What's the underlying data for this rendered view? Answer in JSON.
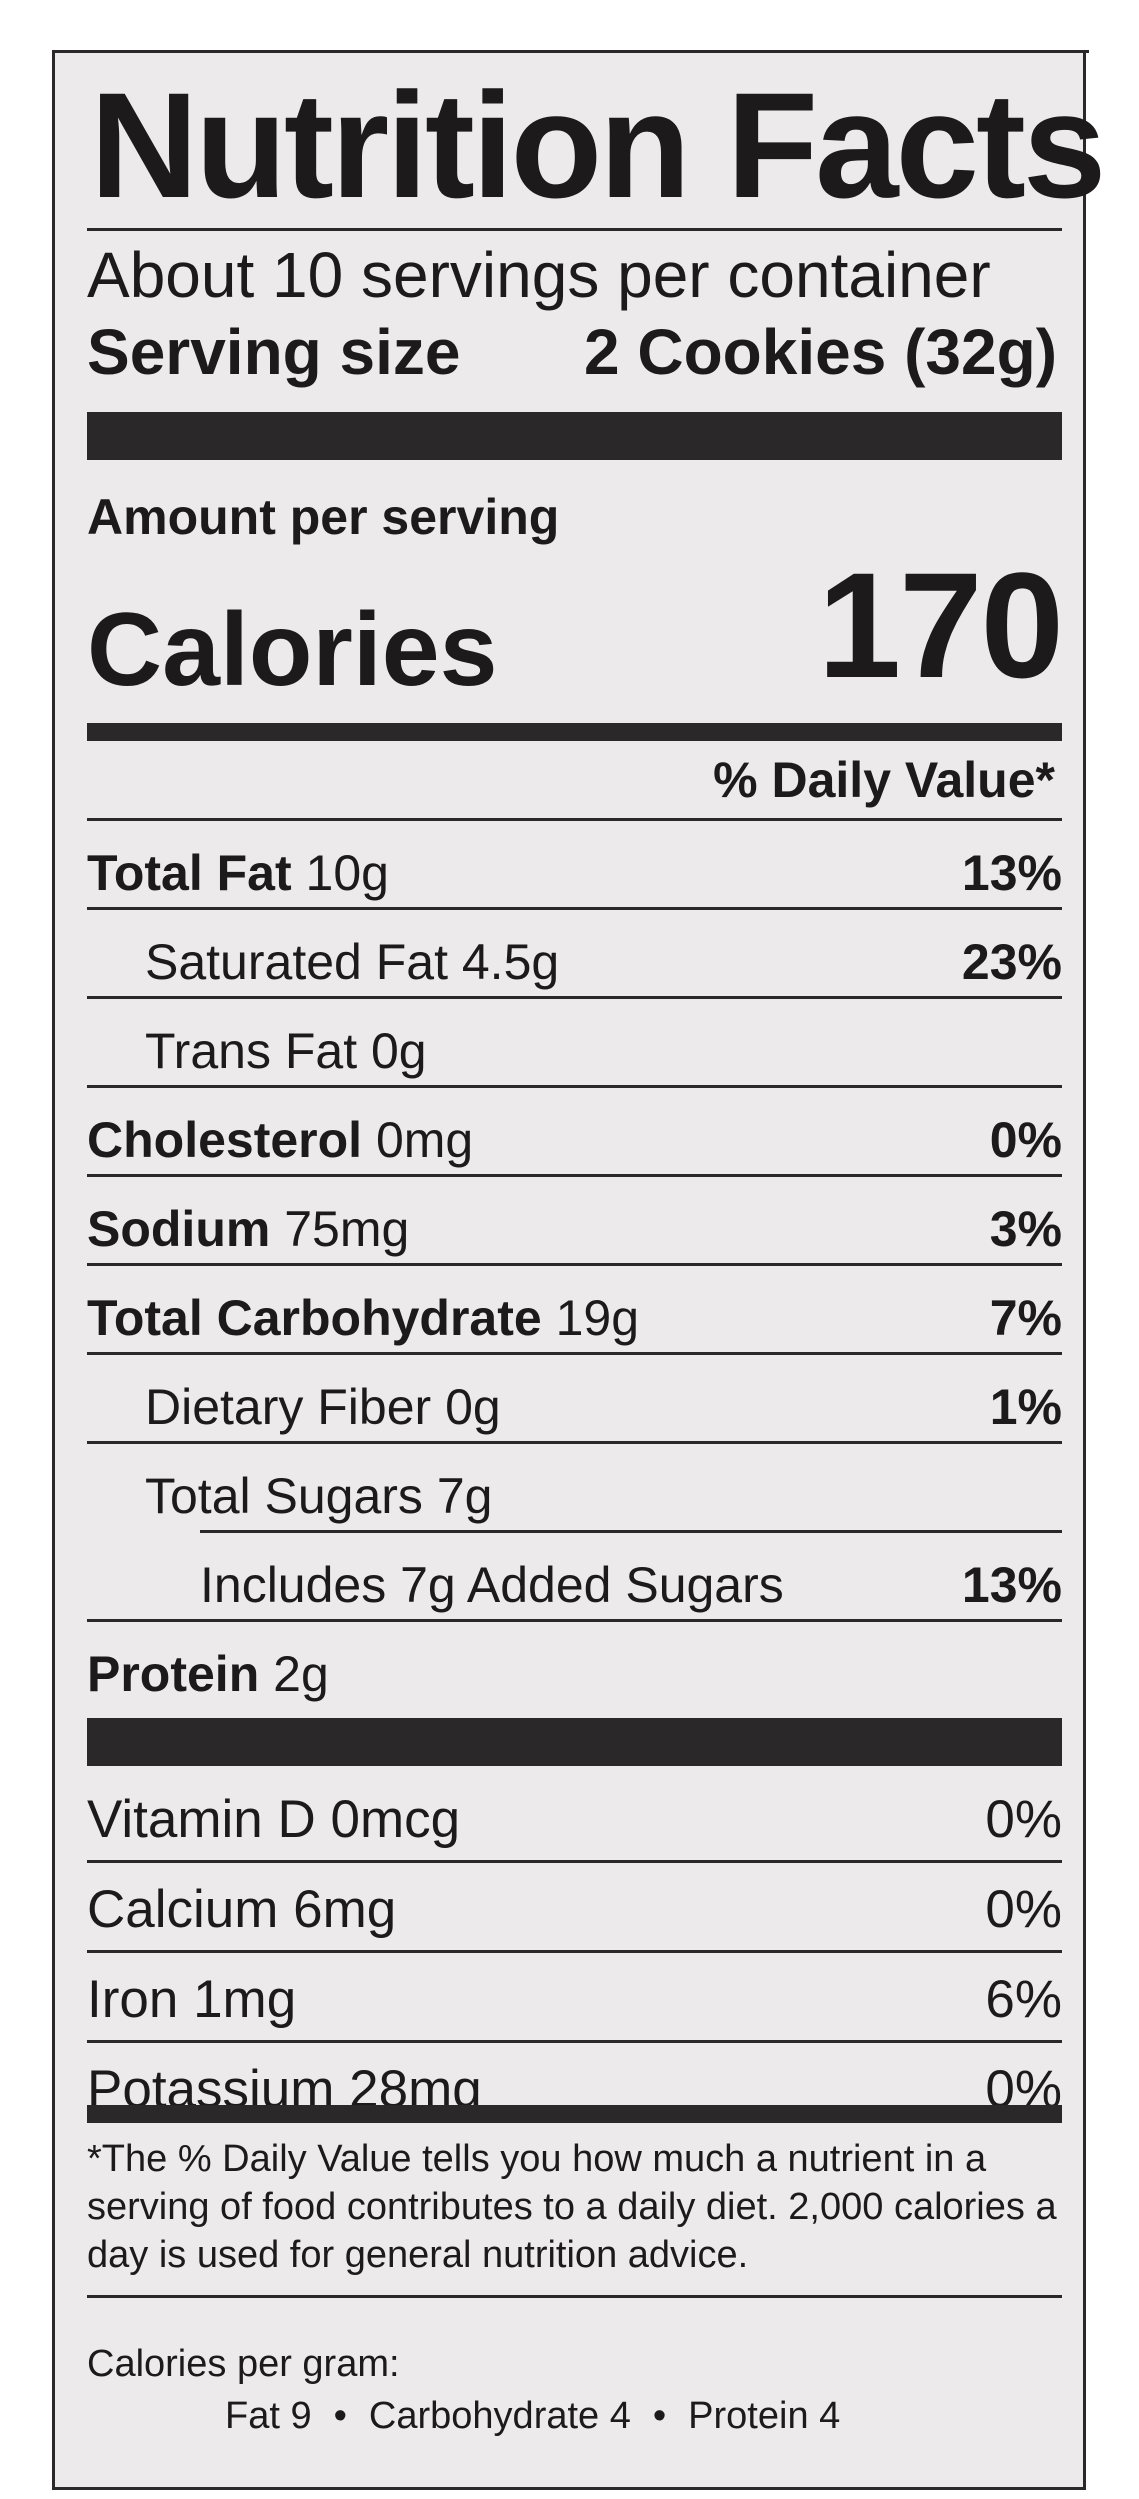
{
  "title": "Nutrition Facts",
  "servings_per_container": "About 10 servings per container",
  "serving_size": {
    "label": "Serving size",
    "value": "2 Cookies (32g)"
  },
  "amount_per_serving": "Amount per serving",
  "calories": {
    "label": "Calories",
    "value": "170"
  },
  "daily_value_header": "% Daily Value*",
  "nutrients": [
    {
      "name": "Total Fat",
      "amount": "10g",
      "dv": "13%"
    },
    {
      "name": "Saturated Fat",
      "amount": "4.5g",
      "dv": "23%"
    },
    {
      "name": "Trans Fat",
      "amount": "0g",
      "dv": ""
    },
    {
      "name": "Cholesterol",
      "amount": "0mg",
      "dv": "0%"
    },
    {
      "name": "Sodium",
      "amount": "75mg",
      "dv": "3%"
    },
    {
      "name": "Total Carbohydrate",
      "amount": "19g",
      "dv": "7%"
    },
    {
      "name": "Dietary Fiber",
      "amount": "0g",
      "dv": "1%"
    },
    {
      "name": "Total Sugars",
      "amount": "7g",
      "dv": ""
    },
    {
      "name": "Includes 7g Added Sugars",
      "amount": "",
      "dv": "13%"
    },
    {
      "name": "Protein",
      "amount": "2g",
      "dv": ""
    }
  ],
  "vitamins": [
    {
      "name": "Vitamin D",
      "amount": "0mcg",
      "dv": "0%"
    },
    {
      "name": "Calcium",
      "amount": "6mg",
      "dv": "0%"
    },
    {
      "name": "Iron",
      "amount": "1mg",
      "dv": "6%"
    },
    {
      "name": "Potassium",
      "amount": "28mg",
      "dv": "0%"
    }
  ],
  "footnote": "*The % Daily Value tells you how much a nutrient in a serving of food contributes to a daily diet. 2,000 calories a day is used for general nutrition advice.",
  "calories_per_gram": {
    "label": "Calories per gram:",
    "fat": "Fat 9",
    "carbohydrate": "Carbohydrate 4",
    "protein": "Protein 4",
    "separator": "•"
  }
}
